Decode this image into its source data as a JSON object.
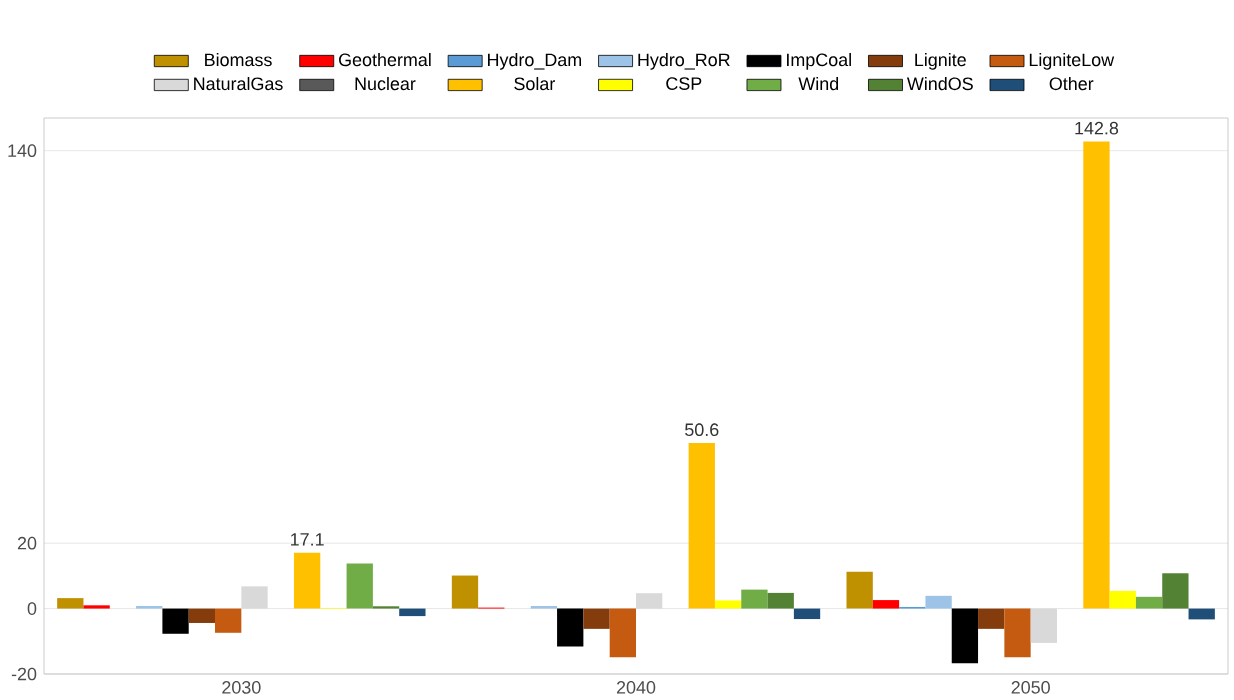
{
  "chart_data": {
    "type": "bar",
    "categories": [
      "2030",
      "2040",
      "2050"
    ],
    "series": [
      {
        "name": "Biomass",
        "color": "#bf9000",
        "values": [
          3.2,
          10.1,
          11.3
        ]
      },
      {
        "name": "Geothermal",
        "color": "#ff0000",
        "values": [
          1.0,
          0.3,
          2.6
        ]
      },
      {
        "name": "Hydro_Dam",
        "color": "#5b9bd5",
        "values": [
          null,
          null,
          0.5
        ]
      },
      {
        "name": "Hydro_RoR",
        "color": "#9dc3e6",
        "values": [
          0.8,
          0.8,
          3.9
        ]
      },
      {
        "name": "ImpCoal",
        "color": "#000000",
        "values": [
          -7.7,
          -11.6,
          -16.7
        ]
      },
      {
        "name": "Lignite",
        "color": "#843c0c",
        "values": [
          -4.4,
          -6.2,
          -6.2
        ]
      },
      {
        "name": "LigniteLow",
        "color": "#c55a11",
        "values": [
          -7.4,
          -14.9,
          -14.9
        ]
      },
      {
        "name": "NaturalGas",
        "color": "#d9d9d9",
        "values": [
          6.8,
          4.7,
          -10.5
        ]
      },
      {
        "name": "Nuclear",
        "color": "#595959",
        "values": [
          null,
          null,
          null
        ]
      },
      {
        "name": "Solar",
        "color": "#ffc000",
        "values": [
          17.1,
          50.6,
          142.8
        ],
        "value_labels": [
          "17.1",
          "50.6",
          "142.8"
        ]
      },
      {
        "name": "CSP",
        "color": "#ffff00",
        "values": [
          0.2,
          2.5,
          5.4
        ]
      },
      {
        "name": "Wind",
        "color": "#70ad47",
        "values": [
          13.8,
          5.8,
          3.6
        ]
      },
      {
        "name": "WindOS",
        "color": "#548235",
        "values": [
          0.7,
          4.8,
          10.8
        ]
      },
      {
        "name": "Other",
        "color": "#1f4e79",
        "values": [
          -2.3,
          -3.2,
          -3.3
        ]
      }
    ],
    "ylim": [
      -20,
      150
    ],
    "yticks": [
      -20,
      0,
      20,
      140
    ],
    "grid": "y",
    "legend": "top"
  }
}
